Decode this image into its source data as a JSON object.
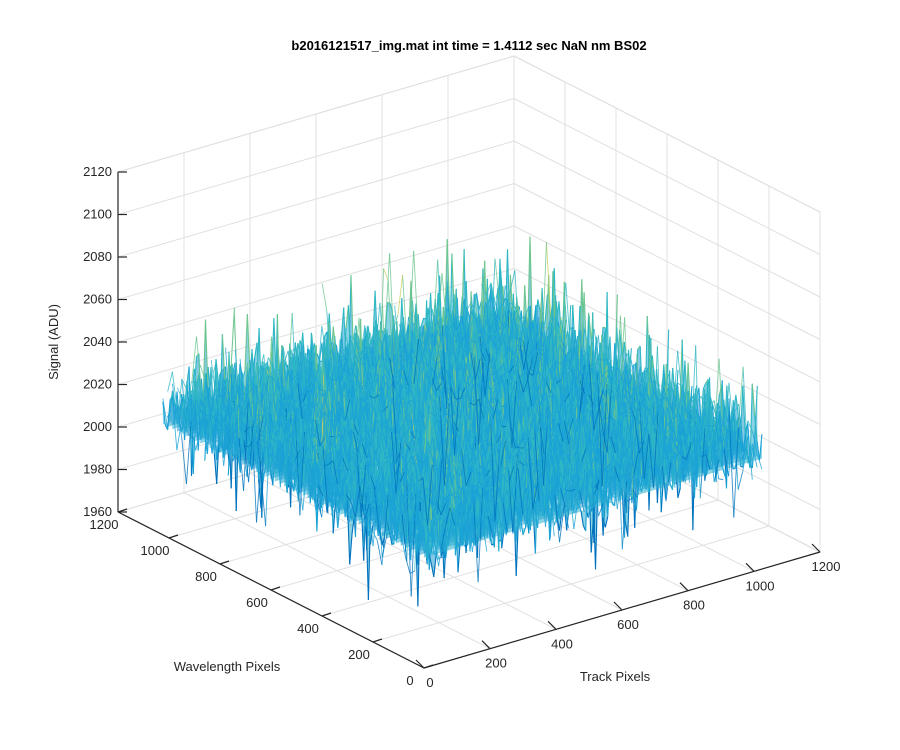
{
  "chart_data": {
    "type": "surface",
    "title": "b2016121517_img.mat int time = 1.4112 sec  NaN nm BS02",
    "xlabel": "Track Pixels",
    "ylabel": "Wavelength Pixels",
    "zlabel": "Signal (ADU)",
    "xlim": [
      0,
      1200
    ],
    "ylim": [
      0,
      1200
    ],
    "zlim": [
      1960,
      2120
    ],
    "xticks": [
      "0",
      "200",
      "400",
      "600",
      "800",
      "1000",
      "1200"
    ],
    "yticks": [
      "0",
      "200",
      "400",
      "600",
      "800",
      "1000",
      "1200"
    ],
    "zticks": [
      "1960",
      "1980",
      "2000",
      "2020",
      "2040",
      "2060",
      "2080",
      "2100",
      "2120"
    ],
    "grid": true,
    "box": true,
    "data_extent": {
      "track_pixels": [
        0,
        1024
      ],
      "wavelength_pixels": [
        0,
        1024
      ]
    },
    "signal_baseline_adu": 2020,
    "signal_range_adu": [
      1968,
      2110
    ],
    "colormap": [
      "#0072bd",
      "#1aa3d6",
      "#2fb7c4",
      "#6cc58e",
      "#c9cf5c"
    ]
  }
}
